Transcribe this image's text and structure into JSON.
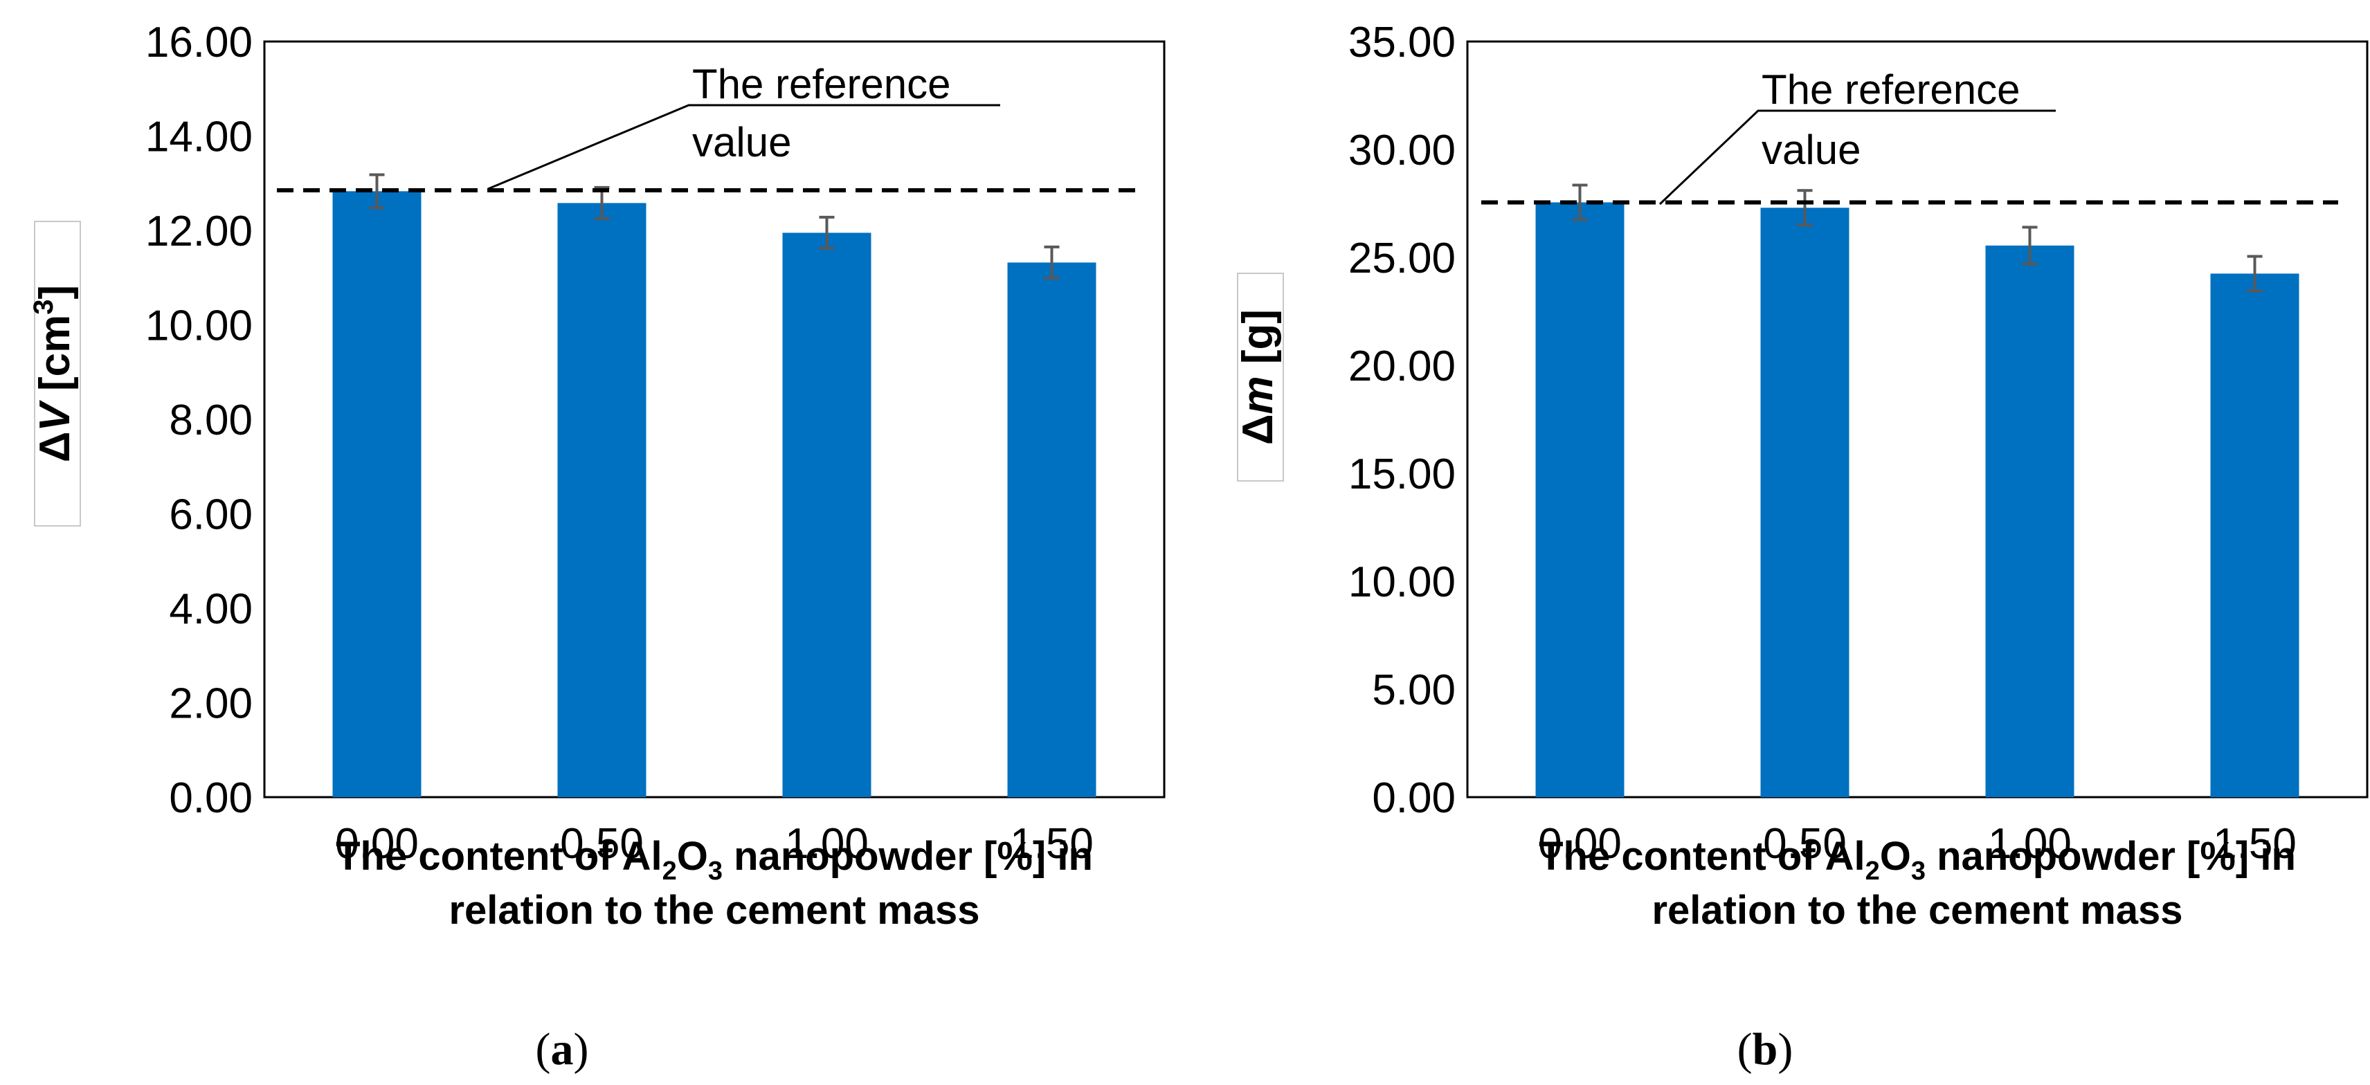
{
  "colors": {
    "bar": "#0070c0",
    "error_bar": "#595959",
    "axis": "#000000",
    "ref_line": "#000000"
  },
  "chart_data": [
    {
      "id": "a",
      "type": "bar",
      "categories": [
        "0.00",
        "0.50",
        "1.00",
        "1.50"
      ],
      "values": [
        12.83,
        12.58,
        11.95,
        11.32
      ],
      "errors": [
        0.35,
        0.33,
        0.33,
        0.33
      ],
      "reference_value": 12.85,
      "annotation": {
        "line1": "The reference",
        "line2": "value"
      },
      "ylim": [
        0,
        16
      ],
      "yticks": [
        "0.00",
        "2.00",
        "4.00",
        "6.00",
        "8.00",
        "10.00",
        "12.00",
        "14.00",
        "16.00"
      ],
      "ylabel": {
        "symbol": "Δ",
        "var": "V",
        "unit_open": " [cm",
        "sup": "3",
        "unit_close": "]"
      },
      "xlabel": {
        "part1": "The content of Al",
        "sub1": "2",
        "part2": "O",
        "sub2": "3",
        "part3": " nanopowder [%] in",
        "line2": "relation to the cement mass"
      },
      "caption": {
        "open": "(",
        "letter": "a",
        "close": ")"
      }
    },
    {
      "id": "b",
      "type": "bar",
      "categories": [
        "0.00",
        "0.50",
        "1.00",
        "1.50"
      ],
      "values": [
        27.55,
        27.3,
        25.55,
        24.25
      ],
      "errors": [
        0.8,
        0.8,
        0.85,
        0.8
      ],
      "reference_value": 27.55,
      "annotation": {
        "line1": "The reference",
        "line2": "value"
      },
      "ylim": [
        0,
        35
      ],
      "yticks": [
        "0.00",
        "5.00",
        "10.00",
        "15.00",
        "20.00",
        "25.00",
        "30.00",
        "35.00"
      ],
      "ylabel": {
        "symbol": "Δ",
        "var": "m",
        "unit_open": " [g]",
        "sup": "",
        "unit_close": ""
      },
      "xlabel": {
        "part1": "The content of Al",
        "sub1": "2",
        "part2": "O",
        "sub2": "3",
        "part3": " nanopowder [%] in",
        "line2": "relation to the cement mass"
      },
      "caption": {
        "open": "(",
        "letter": "b",
        "close": ")"
      }
    }
  ]
}
